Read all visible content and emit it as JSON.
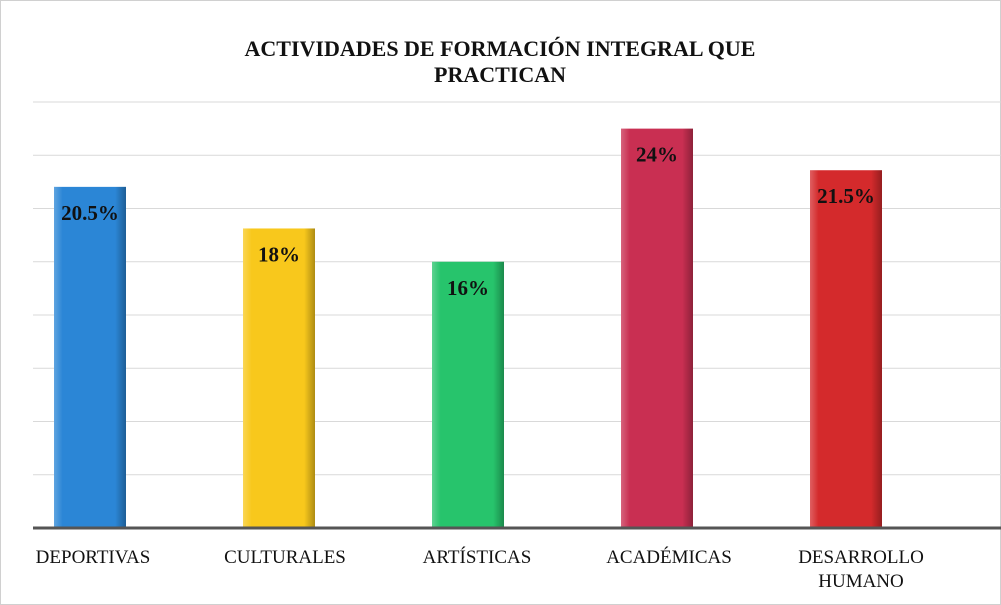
{
  "chart_data": {
    "type": "bar",
    "title": "ACTIVIDADES DE FORMACIÓN INTEGRAL QUE PRACTICAN",
    "categories": [
      "DEPORTIVAS",
      "CULTURALES",
      "ARTÍSTICAS",
      "ACADÉMICAS",
      "DESARROLLO HUMANO"
    ],
    "values": [
      20.5,
      18,
      16,
      24,
      21.5
    ],
    "value_labels": [
      "20.5%",
      "18%",
      "16%",
      "24%",
      "21.5%"
    ],
    "colors": [
      "#2b86d6",
      "#f8c81c",
      "#27c46c",
      "#c92f52",
      "#d42a2c"
    ],
    "ylim": [
      0,
      25.6
    ],
    "yticks": [
      0,
      3.2,
      6.4,
      9.6,
      12.8,
      16,
      19.2,
      22.4,
      25.6
    ],
    "grid": true
  }
}
